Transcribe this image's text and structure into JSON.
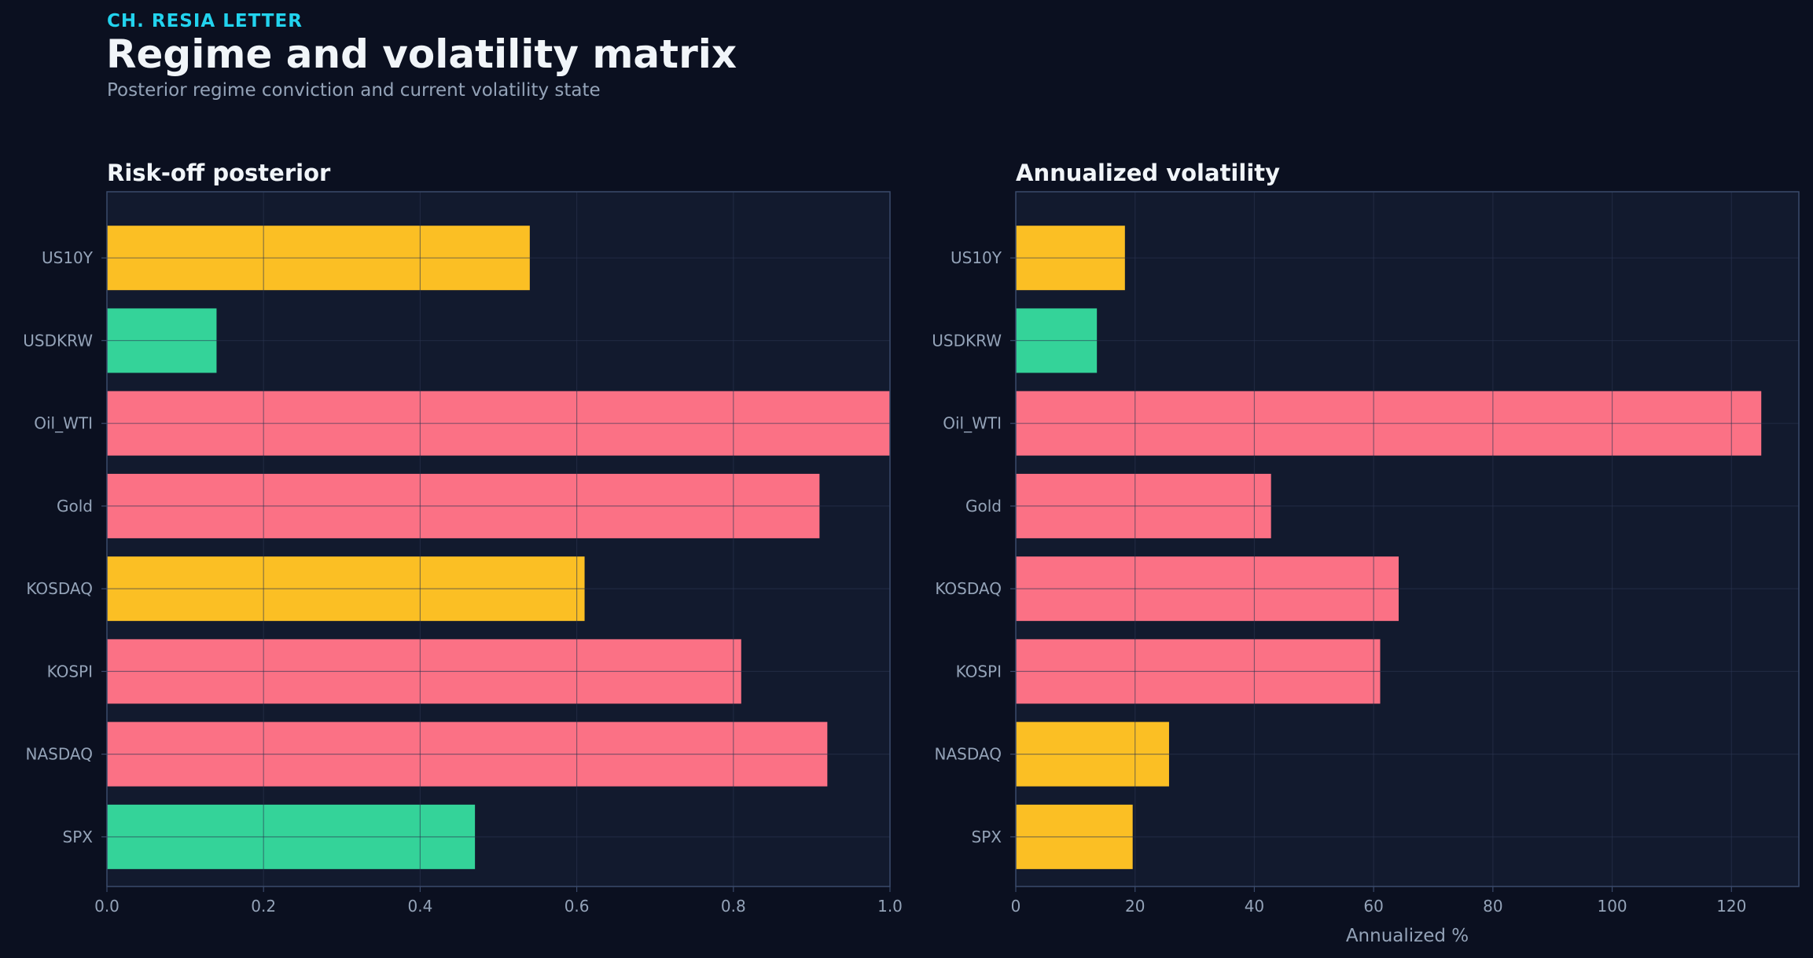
{
  "header": {
    "eyebrow": "CH. RESIA LETTER",
    "title": "Regime and volatility matrix",
    "subtitle": "Posterior regime conviction and current volatility state"
  },
  "colors": {
    "background": "#0b1020",
    "panel": "#121a2e",
    "panel_border": "#3a4a6b",
    "grid": "#2a3550",
    "tick_text": "#94a3b8",
    "title_text": "#f1f5f9",
    "accent": "#22d3ee",
    "risk_off": "#fb7185",
    "neutral": "#fbbf24",
    "risk_on": "#34d399"
  },
  "chart_data": [
    {
      "type": "bar",
      "orientation": "horizontal",
      "title": "Risk-off posterior",
      "xlabel": "",
      "ylabel": "",
      "categories": [
        "US10Y",
        "USDKRW",
        "Oil_WTI",
        "Gold",
        "KOSDAQ",
        "KOSPI",
        "NASDAQ",
        "SPX"
      ],
      "values": [
        0.54,
        0.14,
        1.0,
        0.91,
        0.61,
        0.81,
        0.92,
        0.47
      ],
      "bar_colors": [
        "#fbbf24",
        "#34d399",
        "#fb7185",
        "#fb7185",
        "#fbbf24",
        "#fb7185",
        "#fb7185",
        "#34d399"
      ],
      "xlim": [
        0,
        1.0
      ],
      "xticks": [
        0.0,
        0.2,
        0.4,
        0.6,
        0.8,
        1.0
      ],
      "xtick_labels": [
        "0.0",
        "0.2",
        "0.4",
        "0.6",
        "0.8",
        "1.0"
      ],
      "grid": true
    },
    {
      "type": "bar",
      "orientation": "horizontal",
      "title": "Annualized volatility",
      "xlabel": "Annualized %",
      "ylabel": "",
      "categories": [
        "US10Y",
        "USDKRW",
        "Oil_WTI",
        "Gold",
        "KOSDAQ",
        "KOSPI",
        "NASDAQ",
        "SPX"
      ],
      "values": [
        18.3,
        13.6,
        125.0,
        42.8,
        64.2,
        61.1,
        25.7,
        19.6
      ],
      "bar_colors": [
        "#fbbf24",
        "#34d399",
        "#fb7185",
        "#fb7185",
        "#fb7185",
        "#fb7185",
        "#fbbf24",
        "#fbbf24"
      ],
      "xlim": [
        0,
        131.3
      ],
      "xticks": [
        0,
        20,
        40,
        60,
        80,
        100,
        120
      ],
      "xtick_labels": [
        "0",
        "20",
        "40",
        "60",
        "80",
        "100",
        "120"
      ],
      "grid": true
    }
  ]
}
